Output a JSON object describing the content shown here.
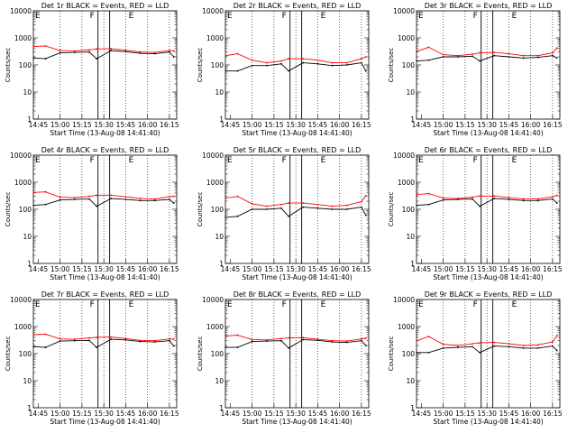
{
  "chart_data": [
    {
      "type": "line",
      "title": "Det 1r BLACK = Events, RED = LLD",
      "xlabel": "Start Time (13-Aug-08 14:41:40)",
      "ylabel": "Counts/sec",
      "x_tick_labels": [
        "14:45",
        "15:00",
        "15:15",
        "15:30",
        "15:45",
        "16:00",
        "16:15"
      ],
      "y_tick_labels": [
        "1",
        "10",
        "100",
        "1000",
        "10000"
      ],
      "yscale": "log",
      "ylim": [
        1,
        10000
      ],
      "annotations": [
        "F",
        "E"
      ],
      "series": [
        {
          "name": "Events",
          "color": "#000000",
          "x": [
            "14:42",
            "14:50",
            "15:00",
            "15:10",
            "15:20",
            "15:25",
            "15:35",
            "15:45",
            "15:55",
            "16:05",
            "16:15",
            "16:18"
          ],
          "values": [
            180,
            170,
            280,
            290,
            300,
            170,
            340,
            310,
            270,
            260,
            300,
            200
          ]
        },
        {
          "name": "LLD",
          "color": "#ff0000",
          "x": [
            "14:42",
            "14:50",
            "15:00",
            "15:10",
            "15:20",
            "15:25",
            "15:35",
            "15:45",
            "15:55",
            "16:05",
            "16:15",
            "16:18"
          ],
          "values": [
            480,
            500,
            340,
            330,
            360,
            390,
            400,
            350,
            300,
            290,
            340,
            330
          ]
        }
      ]
    },
    {
      "type": "line",
      "title": "Det 2r BLACK = Events, RED = LLD",
      "xlabel": "Start Time (13-Aug-08 14:41:40)",
      "ylabel": "Counts/sec",
      "x_tick_labels": [
        "14:45",
        "15:00",
        "15:15",
        "15:30",
        "15:45",
        "16:00",
        "16:15"
      ],
      "y_tick_labels": [
        "1",
        "10",
        "100",
        "1000",
        "10000"
      ],
      "yscale": "log",
      "ylim": [
        1,
        10000
      ],
      "annotations": [
        "F",
        "E"
      ],
      "series": [
        {
          "name": "Events",
          "color": "#000000",
          "x": [
            "14:42",
            "14:50",
            "15:00",
            "15:10",
            "15:20",
            "15:25",
            "15:35",
            "15:45",
            "15:55",
            "16:05",
            "16:15",
            "16:18"
          ],
          "values": [
            60,
            60,
            95,
            95,
            110,
            60,
            120,
            110,
            95,
            100,
            120,
            60
          ]
        },
        {
          "name": "LLD",
          "color": "#ff0000",
          "x": [
            "14:42",
            "14:50",
            "15:00",
            "15:10",
            "15:20",
            "15:25",
            "15:35",
            "15:45",
            "15:55",
            "16:05",
            "16:15",
            "16:18"
          ],
          "values": [
            220,
            260,
            150,
            120,
            140,
            170,
            170,
            150,
            120,
            120,
            170,
            200
          ]
        }
      ]
    },
    {
      "type": "line",
      "title": "Det 3r BLACK = Events, RED = LLD",
      "xlabel": "Start Time (13-Aug-08 14:41:40)",
      "ylabel": "Counts/sec",
      "x_tick_labels": [
        "14:45",
        "15:00",
        "15:15",
        "15:30",
        "15:45",
        "16:00",
        "16:15"
      ],
      "y_tick_labels": [
        "1",
        "10",
        "100",
        "1000",
        "10000"
      ],
      "yscale": "log",
      "ylim": [
        1,
        10000
      ],
      "annotations": [
        "F",
        "E"
      ],
      "series": [
        {
          "name": "Events",
          "color": "#000000",
          "x": [
            "14:42",
            "14:50",
            "15:00",
            "15:10",
            "15:20",
            "15:25",
            "15:35",
            "15:45",
            "15:55",
            "16:05",
            "16:15",
            "16:18"
          ],
          "values": [
            140,
            150,
            200,
            200,
            210,
            140,
            220,
            200,
            180,
            190,
            220,
            180
          ]
        },
        {
          "name": "LLD",
          "color": "#ff0000",
          "x": [
            "14:42",
            "14:50",
            "15:00",
            "15:10",
            "15:20",
            "15:25",
            "15:35",
            "15:45",
            "15:55",
            "16:05",
            "16:15",
            "16:18"
          ],
          "values": [
            320,
            450,
            240,
            220,
            250,
            280,
            290,
            260,
            220,
            220,
            280,
            420
          ]
        }
      ]
    },
    {
      "type": "line",
      "title": "Det 4r BLACK = Events, RED = LLD",
      "xlabel": "Start Time (13-Aug-08 14:41:40)",
      "ylabel": "Counts/sec",
      "x_tick_labels": [
        "14:45",
        "15:00",
        "15:15",
        "15:30",
        "15:45",
        "16:00",
        "16:15"
      ],
      "y_tick_labels": [
        "1",
        "10",
        "100",
        "1000",
        "10000"
      ],
      "yscale": "log",
      "ylim": [
        1,
        10000
      ],
      "annotations": [
        "F",
        "E"
      ],
      "series": [
        {
          "name": "Events",
          "color": "#000000",
          "x": [
            "14:42",
            "14:50",
            "15:00",
            "15:10",
            "15:20",
            "15:25",
            "15:35",
            "15:45",
            "15:55",
            "16:05",
            "16:15",
            "16:18"
          ],
          "values": [
            140,
            150,
            220,
            230,
            240,
            130,
            250,
            230,
            210,
            210,
            230,
            170
          ]
        },
        {
          "name": "LLD",
          "color": "#ff0000",
          "x": [
            "14:42",
            "14:50",
            "15:00",
            "15:10",
            "15:20",
            "15:25",
            "15:35",
            "15:45",
            "15:55",
            "16:05",
            "16:15",
            "16:18"
          ],
          "values": [
            420,
            440,
            280,
            270,
            300,
            330,
            330,
            290,
            250,
            240,
            290,
            300
          ]
        }
      ]
    },
    {
      "type": "line",
      "title": "Det 5r BLACK = Events, RED = LLD",
      "xlabel": "Start Time (13-Aug-08 14:41:40)",
      "ylabel": "Counts/sec",
      "x_tick_labels": [
        "14:45",
        "15:00",
        "15:15",
        "15:30",
        "15:45",
        "16:00",
        "16:15"
      ],
      "y_tick_labels": [
        "1",
        "10",
        "100",
        "1000",
        "10000"
      ],
      "yscale": "log",
      "ylim": [
        1,
        10000
      ],
      "annotations": [
        "F",
        "E"
      ],
      "series": [
        {
          "name": "Events",
          "color": "#000000",
          "x": [
            "14:42",
            "14:50",
            "15:00",
            "15:10",
            "15:20",
            "15:25",
            "15:35",
            "15:45",
            "15:55",
            "16:05",
            "16:15",
            "16:18"
          ],
          "values": [
            50,
            55,
            100,
            100,
            110,
            55,
            120,
            110,
            100,
            100,
            120,
            60
          ]
        },
        {
          "name": "LLD",
          "color": "#ff0000",
          "x": [
            "14:42",
            "14:50",
            "15:00",
            "15:10",
            "15:20",
            "15:25",
            "15:35",
            "15:45",
            "15:55",
            "16:05",
            "16:15",
            "16:18"
          ],
          "values": [
            260,
            300,
            160,
            130,
            150,
            170,
            170,
            150,
            130,
            140,
            190,
            320
          ]
        }
      ]
    },
    {
      "type": "line",
      "title": "Det 6r BLACK = Events, RED = LLD",
      "xlabel": "Start Time (13-Aug-08 14:41:40)",
      "ylabel": "Counts/sec",
      "x_tick_labels": [
        "14:45",
        "15:00",
        "15:15",
        "15:30",
        "15:45",
        "16:00",
        "16:15"
      ],
      "y_tick_labels": [
        "1",
        "10",
        "100",
        "1000",
        "10000"
      ],
      "yscale": "log",
      "ylim": [
        1,
        10000
      ],
      "annotations": [
        "F",
        "E"
      ],
      "series": [
        {
          "name": "Events",
          "color": "#000000",
          "x": [
            "14:42",
            "14:50",
            "15:00",
            "15:10",
            "15:20",
            "15:25",
            "15:35",
            "15:45",
            "15:55",
            "16:05",
            "16:15",
            "16:18"
          ],
          "values": [
            140,
            150,
            220,
            230,
            240,
            130,
            250,
            230,
            210,
            210,
            240,
            170
          ]
        },
        {
          "name": "LLD",
          "color": "#ff0000",
          "x": [
            "14:42",
            "14:50",
            "15:00",
            "15:10",
            "15:20",
            "15:25",
            "15:35",
            "15:45",
            "15:55",
            "16:05",
            "16:15",
            "16:18"
          ],
          "values": [
            350,
            380,
            260,
            250,
            280,
            310,
            310,
            270,
            240,
            240,
            290,
            330
          ]
        }
      ]
    },
    {
      "type": "line",
      "title": "Det 7r BLACK = Events, RED = LLD",
      "xlabel": "Start Time (13-Aug-08 14:41:40)",
      "ylabel": "Counts/sec",
      "x_tick_labels": [
        "14:45",
        "15:00",
        "15:15",
        "15:30",
        "15:45",
        "16:00",
        "16:15"
      ],
      "y_tick_labels": [
        "1",
        "10",
        "100",
        "1000",
        "10000"
      ],
      "yscale": "log",
      "ylim": [
        1,
        10000
      ],
      "annotations": [
        "F",
        "E"
      ],
      "series": [
        {
          "name": "Events",
          "color": "#000000",
          "x": [
            "14:42",
            "14:50",
            "15:00",
            "15:10",
            "15:20",
            "15:25",
            "15:35",
            "15:45",
            "15:55",
            "16:05",
            "16:15",
            "16:18"
          ],
          "values": [
            180,
            170,
            290,
            300,
            310,
            170,
            340,
            320,
            280,
            270,
            300,
            190
          ]
        },
        {
          "name": "LLD",
          "color": "#ff0000",
          "x": [
            "14:42",
            "14:50",
            "15:00",
            "15:10",
            "15:20",
            "15:25",
            "15:35",
            "15:45",
            "15:55",
            "16:05",
            "16:15",
            "16:18"
          ],
          "values": [
            500,
            520,
            350,
            340,
            380,
            400,
            410,
            360,
            310,
            300,
            350,
            340
          ]
        }
      ]
    },
    {
      "type": "line",
      "title": "Det 8r BLACK = Events, RED = LLD",
      "xlabel": "Start Time (13-Aug-08 14:41:40)",
      "ylabel": "Counts/sec",
      "x_tick_labels": [
        "14:45",
        "15:00",
        "15:15",
        "15:30",
        "15:45",
        "16:00",
        "16:15"
      ],
      "y_tick_labels": [
        "1",
        "10",
        "100",
        "1000",
        "10000"
      ],
      "yscale": "log",
      "ylim": [
        1,
        10000
      ],
      "annotations": [
        "F",
        "E"
      ],
      "series": [
        {
          "name": "Events",
          "color": "#000000",
          "x": [
            "14:42",
            "14:50",
            "15:00",
            "15:10",
            "15:20",
            "15:25",
            "15:35",
            "15:45",
            "15:55",
            "16:05",
            "16:15",
            "16:18"
          ],
          "values": [
            170,
            170,
            280,
            290,
            300,
            160,
            330,
            310,
            270,
            260,
            300,
            200
          ]
        },
        {
          "name": "LLD",
          "color": "#ff0000",
          "x": [
            "14:42",
            "14:50",
            "15:00",
            "15:10",
            "15:20",
            "15:25",
            "15:35",
            "15:45",
            "15:55",
            "16:05",
            "16:15",
            "16:18"
          ],
          "values": [
            450,
            480,
            330,
            320,
            360,
            380,
            390,
            340,
            300,
            290,
            350,
            370
          ]
        }
      ]
    },
    {
      "type": "line",
      "title": "Det 9r BLACK = Events, RED = LLD",
      "xlabel": "Start Time (13-Aug-08 14:41:40)",
      "ylabel": "Counts/sec",
      "x_tick_labels": [
        "14:45",
        "15:00",
        "15:15",
        "15:30",
        "15:45",
        "16:00",
        "16:15"
      ],
      "y_tick_labels": [
        "1",
        "10",
        "100",
        "1000",
        "10000"
      ],
      "yscale": "log",
      "ylim": [
        1,
        10000
      ],
      "annotations": [
        "F",
        "E"
      ],
      "series": [
        {
          "name": "Events",
          "color": "#000000",
          "x": [
            "14:42",
            "14:50",
            "15:00",
            "15:10",
            "15:20",
            "15:25",
            "15:35",
            "15:45",
            "15:55",
            "16:05",
            "16:15",
            "16:18"
          ],
          "values": [
            110,
            110,
            160,
            170,
            180,
            110,
            190,
            180,
            160,
            160,
            190,
            130
          ]
        },
        {
          "name": "LLD",
          "color": "#ff0000",
          "x": [
            "14:42",
            "14:50",
            "15:00",
            "15:10",
            "15:20",
            "15:25",
            "15:35",
            "15:45",
            "15:55",
            "16:05",
            "16:15",
            "16:18"
          ],
          "values": [
            300,
            430,
            220,
            200,
            230,
            250,
            260,
            230,
            200,
            210,
            270,
            460
          ]
        }
      ]
    }
  ]
}
